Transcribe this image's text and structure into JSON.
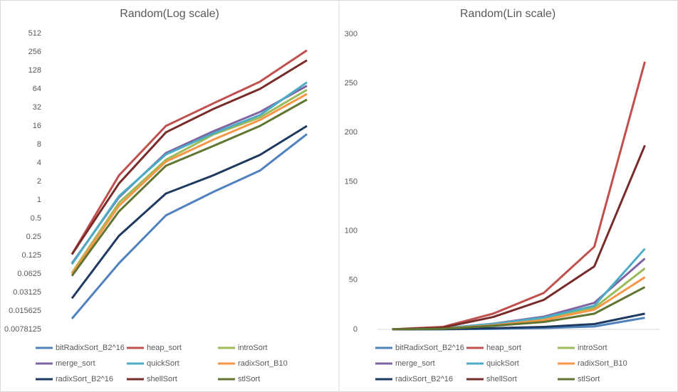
{
  "chart_data": [
    {
      "type": "line",
      "title": "Random(Log scale)",
      "log_scale": true,
      "categories": [
        null,
        null,
        null,
        null,
        null,
        null
      ],
      "ylim": [
        0.0078125,
        512
      ],
      "yticks": [
        0.0078125,
        0.015625,
        0.03125,
        0.0625,
        0.125,
        0.25,
        0.5,
        1,
        2,
        4,
        8,
        16,
        32,
        64,
        128,
        256,
        512
      ],
      "series": [
        {
          "name": "bitRadixSort_B2^16",
          "color": "#4f81bd",
          "values": [
            0.0117,
            0.093,
            0.56,
            1.34,
            3.0,
            11.8
          ]
        },
        {
          "name": "heap_sort",
          "color": "#c0504d",
          "values": [
            0.13,
            2.5,
            16,
            37,
            84,
            272
          ]
        },
        {
          "name": "introSort",
          "color": "#9bbb59",
          "values": [
            0.065,
            0.9,
            4.5,
            11.5,
            22,
            62
          ]
        },
        {
          "name": "merge_sort",
          "color": "#8064a2",
          "values": [
            0.093,
            1.1,
            5.8,
            13,
            27,
            72
          ]
        },
        {
          "name": "quickSort",
          "color": "#4bacc6",
          "values": [
            0.09,
            1.15,
            5.5,
            12,
            24,
            82
          ]
        },
        {
          "name": "radixSort_B10",
          "color": "#f79646",
          "values": [
            0.063,
            0.8,
            4.2,
            9.5,
            20,
            53
          ]
        },
        {
          "name": "radixSort_B2^16",
          "color": "#1f3a60",
          "values": [
            0.025,
            0.26,
            1.27,
            2.5,
            5.4,
            16
          ]
        },
        {
          "name": "shellSort",
          "color": "#772c2a",
          "values": [
            0.13,
            1.85,
            12.6,
            30,
            64,
            187
          ]
        },
        {
          "name": "stlSort",
          "color": "#5f7530",
          "values": [
            0.058,
            0.65,
            3.6,
            7.5,
            16,
            43
          ]
        }
      ]
    },
    {
      "type": "line",
      "title": "Random(Lin scale)",
      "log_scale": false,
      "categories": [
        null,
        null,
        null,
        null,
        null,
        null
      ],
      "ylim": [
        0,
        300
      ],
      "yticks": [
        0,
        50,
        100,
        150,
        200,
        250,
        300
      ],
      "series": [
        {
          "name": "bitRadixSort_B2^16",
          "color": "#4f81bd",
          "values": [
            0.0117,
            0.093,
            0.56,
            1.34,
            3.0,
            11.8
          ]
        },
        {
          "name": "heap_sort",
          "color": "#c0504d",
          "values": [
            0.13,
            2.5,
            16,
            37,
            84,
            272
          ]
        },
        {
          "name": "introSort",
          "color": "#9bbb59",
          "values": [
            0.065,
            0.9,
            4.5,
            11.5,
            22,
            62
          ]
        },
        {
          "name": "merge_sort",
          "color": "#8064a2",
          "values": [
            0.093,
            1.1,
            5.8,
            13,
            27,
            72
          ]
        },
        {
          "name": "quickSort",
          "color": "#4bacc6",
          "values": [
            0.09,
            1.15,
            5.5,
            12,
            24,
            82
          ]
        },
        {
          "name": "radixSort_B10",
          "color": "#f79646",
          "values": [
            0.063,
            0.8,
            4.2,
            9.5,
            20,
            53
          ]
        },
        {
          "name": "radixSort_B2^16",
          "color": "#1f3a60",
          "values": [
            0.025,
            0.26,
            1.27,
            2.5,
            5.4,
            16
          ]
        },
        {
          "name": "shellSort",
          "color": "#772c2a",
          "values": [
            0.13,
            1.85,
            12.6,
            30,
            64,
            187
          ]
        },
        {
          "name": "stlSort",
          "color": "#5f7530",
          "values": [
            0.058,
            0.65,
            3.6,
            7.5,
            16,
            43
          ]
        }
      ]
    }
  ]
}
